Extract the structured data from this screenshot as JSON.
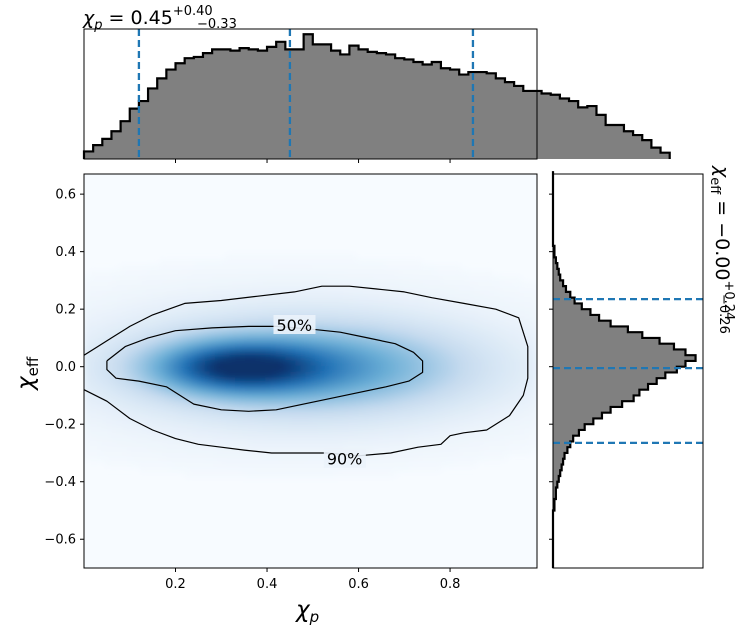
{
  "chart_data": [
    {
      "type": "histogram",
      "panel": "top-marginal",
      "variable": "chi_p",
      "title": {
        "symbol": "χ",
        "sub": "p",
        "eq": " = 0.45",
        "sup": "+0.40",
        "subscr": "−0.33"
      },
      "xlim": [
        0.0,
        0.99
      ],
      "bins": {
        "start": 0.0,
        "width": 0.02,
        "counts": [
          0.06,
          0.11,
          0.16,
          0.22,
          0.3,
          0.4,
          0.46,
          0.56,
          0.64,
          0.71,
          0.76,
          0.8,
          0.81,
          0.84,
          0.87,
          0.87,
          0.86,
          0.88,
          0.87,
          0.86,
          0.89,
          0.93,
          0.87,
          0.87,
          0.99,
          0.91,
          0.91,
          0.86,
          0.83,
          0.9,
          0.87,
          0.85,
          0.84,
          0.83,
          0.8,
          0.79,
          0.77,
          0.75,
          0.77,
          0.72,
          0.71,
          0.67,
          0.69,
          0.69,
          0.68,
          0.64,
          0.61,
          0.58,
          0.54,
          0.54,
          0.52,
          0.51,
          0.48,
          0.46,
          0.41,
          0.42,
          0.35,
          0.27,
          0.27,
          0.22,
          0.19,
          0.15,
          0.09,
          0.05
        ]
      },
      "ylim": [
        0,
        1.0
      ],
      "quantile_lines": [
        0.12,
        0.45,
        0.85
      ]
    },
    {
      "type": "heatmap",
      "panel": "joint",
      "xlabel": {
        "symbol": "χ",
        "sub": "p"
      },
      "ylabel": {
        "symbol": "χ",
        "sub": "eff"
      },
      "xlim": [
        0.0,
        0.99
      ],
      "ylim": [
        -0.7,
        0.67
      ],
      "xticks": [
        0.2,
        0.4,
        0.6,
        0.8
      ],
      "yticks": [
        -0.6,
        -0.4,
        -0.2,
        0.0,
        0.2,
        0.4,
        0.6
      ],
      "ytick_labels": [
        "−0.6",
        "−0.4",
        "−0.2",
        "0.0",
        "0.2",
        "0.4",
        "0.6"
      ],
      "density_center": {
        "x": 0.33,
        "y": 0.0
      },
      "colormap": [
        "#f7fbff",
        "#c6dbef",
        "#6baed6",
        "#2171b5",
        "#08306b"
      ],
      "contours": [
        {
          "label": "50%",
          "label_at": [
            0.46,
            0.145
          ],
          "points": [
            [
              0.05,
              0.02
            ],
            [
              0.09,
              0.07
            ],
            [
              0.14,
              0.1
            ],
            [
              0.2,
              0.125
            ],
            [
              0.28,
              0.135
            ],
            [
              0.36,
              0.14
            ],
            [
              0.42,
              0.14
            ],
            [
              0.5,
              0.13
            ],
            [
              0.56,
              0.12
            ],
            [
              0.62,
              0.1
            ],
            [
              0.68,
              0.08
            ],
            [
              0.72,
              0.05
            ],
            [
              0.74,
              0.02
            ],
            [
              0.74,
              -0.02
            ],
            [
              0.71,
              -0.05
            ],
            [
              0.66,
              -0.07
            ],
            [
              0.6,
              -0.09
            ],
            [
              0.54,
              -0.11
            ],
            [
              0.48,
              -0.13
            ],
            [
              0.42,
              -0.15
            ],
            [
              0.36,
              -0.155
            ],
            [
              0.3,
              -0.15
            ],
            [
              0.24,
              -0.13
            ],
            [
              0.18,
              -0.07
            ],
            [
              0.12,
              -0.05
            ],
            [
              0.07,
              -0.04
            ],
            [
              0.05,
              -0.01
            ],
            [
              0.05,
              0.02
            ]
          ]
        },
        {
          "label": "90%",
          "label_at": [
            0.57,
            -0.32
          ],
          "points": [
            [
              0.0,
              0.04
            ],
            [
              0.03,
              0.07
            ],
            [
              0.06,
              0.1
            ],
            [
              0.1,
              0.14
            ],
            [
              0.15,
              0.18
            ],
            [
              0.22,
              0.22
            ],
            [
              0.3,
              0.23
            ],
            [
              0.38,
              0.245
            ],
            [
              0.46,
              0.26
            ],
            [
              0.52,
              0.28
            ],
            [
              0.58,
              0.28
            ],
            [
              0.64,
              0.27
            ],
            [
              0.7,
              0.26
            ],
            [
              0.76,
              0.24
            ],
            [
              0.83,
              0.22
            ],
            [
              0.9,
              0.2
            ],
            [
              0.95,
              0.17
            ],
            [
              0.97,
              0.07
            ],
            [
              0.97,
              -0.04
            ],
            [
              0.96,
              -0.1
            ],
            [
              0.93,
              -0.17
            ],
            [
              0.88,
              -0.22
            ],
            [
              0.83,
              -0.23
            ],
            [
              0.8,
              -0.24
            ],
            [
              0.78,
              -0.27
            ],
            [
              0.73,
              -0.28
            ],
            [
              0.67,
              -0.3
            ],
            [
              0.6,
              -0.31
            ],
            [
              0.53,
              -0.3
            ],
            [
              0.47,
              -0.3
            ],
            [
              0.41,
              -0.3
            ],
            [
              0.35,
              -0.29
            ],
            [
              0.3,
              -0.28
            ],
            [
              0.25,
              -0.27
            ],
            [
              0.2,
              -0.25
            ],
            [
              0.15,
              -0.22
            ],
            [
              0.1,
              -0.18
            ],
            [
              0.05,
              -0.12
            ],
            [
              0.0,
              -0.08
            ]
          ]
        }
      ]
    },
    {
      "type": "histogram",
      "panel": "right-marginal",
      "variable": "chi_eff",
      "title": {
        "symbol": "χ",
        "sub": "eff",
        "eq": " = −0.00",
        "sup": "+0.24",
        "subscr": "−0.26"
      },
      "ylim": [
        -0.7,
        0.67
      ],
      "bins": {
        "start": -0.7,
        "width": 0.02,
        "counts": [
          0.0,
          0.0,
          0.0,
          0.0,
          0.0,
          0.0,
          0.0,
          0.0,
          0.0,
          0.0,
          0.01,
          0.01,
          0.02,
          0.02,
          0.03,
          0.04,
          0.05,
          0.06,
          0.07,
          0.08,
          0.1,
          0.12,
          0.14,
          0.18,
          0.22,
          0.28,
          0.34,
          0.4,
          0.48,
          0.56,
          0.6,
          0.66,
          0.72,
          0.78,
          0.86,
          0.92,
          0.99,
          0.92,
          0.84,
          0.74,
          0.62,
          0.52,
          0.4,
          0.32,
          0.26,
          0.2,
          0.15,
          0.12,
          0.09,
          0.07,
          0.05,
          0.04,
          0.03,
          0.02,
          0.01,
          0.01,
          0.0,
          0.0,
          0.0,
          0.0,
          0.0,
          0.0,
          0.0,
          0.0,
          0.0,
          0.0,
          0.0,
          0.0,
          0.0
        ]
      },
      "xlim": [
        0,
        1.0
      ],
      "quantile_lines": [
        0.235,
        -0.005,
        -0.265
      ]
    }
  ]
}
